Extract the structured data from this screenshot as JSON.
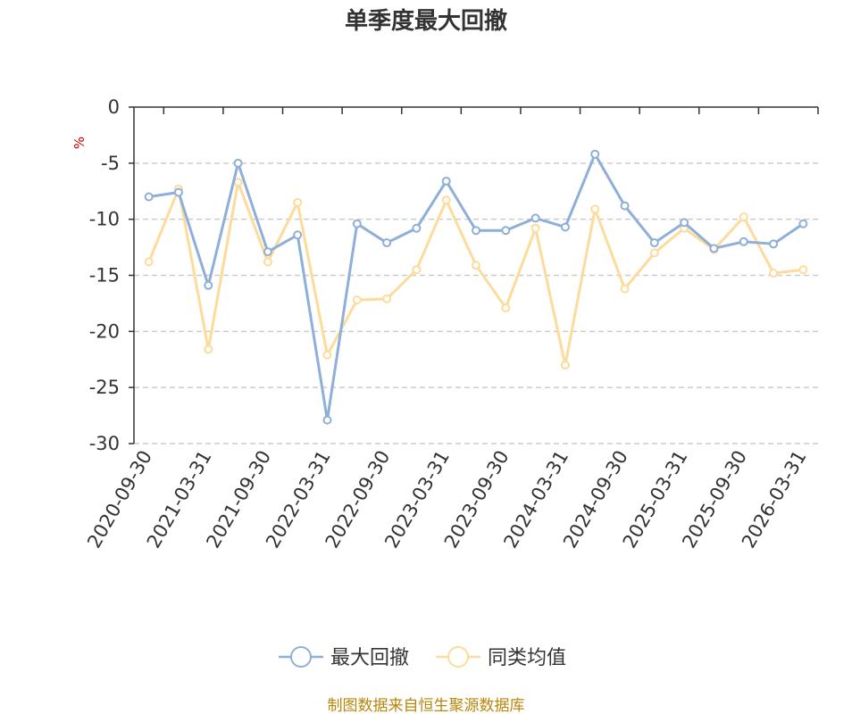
{
  "chart_data": {
    "type": "line",
    "title": "单季度最大回撤",
    "unit": "%",
    "source": "制图数据来自恒生聚源数据库",
    "ylim": [
      -30,
      0
    ],
    "yticks": [
      "0",
      "-5",
      "-10",
      "-15",
      "-20",
      "-25",
      "-30"
    ],
    "ytick_values": [
      0,
      -5,
      -10,
      -15,
      -20,
      -25,
      -30
    ],
    "grid": true,
    "legend_placement": "bottom-center",
    "x": [
      "2020-09-30",
      "2020-12-31",
      "2021-03-31",
      "2021-06-30",
      "2021-09-30",
      "2021-12-31",
      "2022-03-31",
      "2022-06-30",
      "2022-09-30",
      "2022-12-31",
      "2023-03-31",
      "2023-06-30",
      "2023-09-30",
      "2023-12-31",
      "2024-03-31",
      "2024-06-30",
      "2024-09-30",
      "2024-12-31",
      "2025-03-31",
      "2025-06-30",
      "2025-09-30",
      "2025-12-31",
      "2026-03-31"
    ],
    "xtick_labels": [
      "2020-09-30",
      "2021-03-31",
      "2021-09-30",
      "2022-03-31",
      "2022-09-30",
      "2023-03-31",
      "2023-09-30",
      "2024-03-31",
      "2024-09-30",
      "2025-03-31",
      "2025-09-30",
      "2026-03-31"
    ],
    "series": [
      {
        "name": "最大回撤",
        "color": "#8eafd9",
        "values": [
          -8.0,
          -7.6,
          -15.9,
          -5.0,
          -12.9,
          -11.4,
          -27.9,
          -10.4,
          -12.1,
          -10.8,
          -6.6,
          -11.0,
          -11.0,
          -9.9,
          -10.7,
          -4.2,
          -8.8,
          -12.1,
          -10.3,
          -12.6,
          -12.0,
          -12.2,
          -10.4
        ]
      },
      {
        "name": "同类均值",
        "color": "#fddb9b",
        "values": [
          -13.8,
          -7.3,
          -21.6,
          -6.7,
          -13.8,
          -8.5,
          -22.1,
          -17.2,
          -17.1,
          -14.5,
          -8.3,
          -14.1,
          -17.9,
          -10.8,
          -23.0,
          -9.1,
          -16.2,
          -13.0,
          -10.8,
          -12.7,
          -9.8,
          -14.8,
          -14.5
        ]
      }
    ]
  }
}
